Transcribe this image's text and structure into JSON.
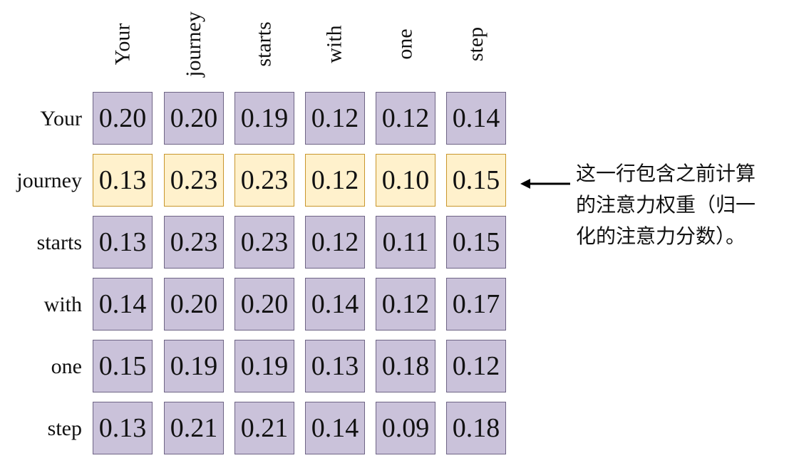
{
  "columns": [
    "Your",
    "journey",
    "starts",
    "with",
    "one",
    "step"
  ],
  "rows": [
    {
      "label": "Your",
      "values": [
        "0.20",
        "0.20",
        "0.19",
        "0.12",
        "0.12",
        "0.14"
      ],
      "highlight": false
    },
    {
      "label": "journey",
      "values": [
        "0.13",
        "0.23",
        "0.23",
        "0.12",
        "0.10",
        "0.15"
      ],
      "highlight": true
    },
    {
      "label": "starts",
      "values": [
        "0.13",
        "0.23",
        "0.23",
        "0.12",
        "0.11",
        "0.15"
      ],
      "highlight": false
    },
    {
      "label": "with",
      "values": [
        "0.14",
        "0.20",
        "0.20",
        "0.14",
        "0.12",
        "0.17"
      ],
      "highlight": false
    },
    {
      "label": "one",
      "values": [
        "0.15",
        "0.19",
        "0.19",
        "0.13",
        "0.18",
        "0.12"
      ],
      "highlight": false
    },
    {
      "label": "step",
      "values": [
        "0.13",
        "0.21",
        "0.21",
        "0.14",
        "0.09",
        "0.18"
      ],
      "highlight": false
    }
  ],
  "annotation": {
    "lines": [
      "这一行包含之前计算",
      "的注意力权重（归一",
      "化的注意力分数）。"
    ]
  },
  "colors": {
    "cell_fill": "#cac2da",
    "cell_border": "#6e6485",
    "highlight_fill": "#fff1cc",
    "highlight_border": "#c9962c"
  }
}
